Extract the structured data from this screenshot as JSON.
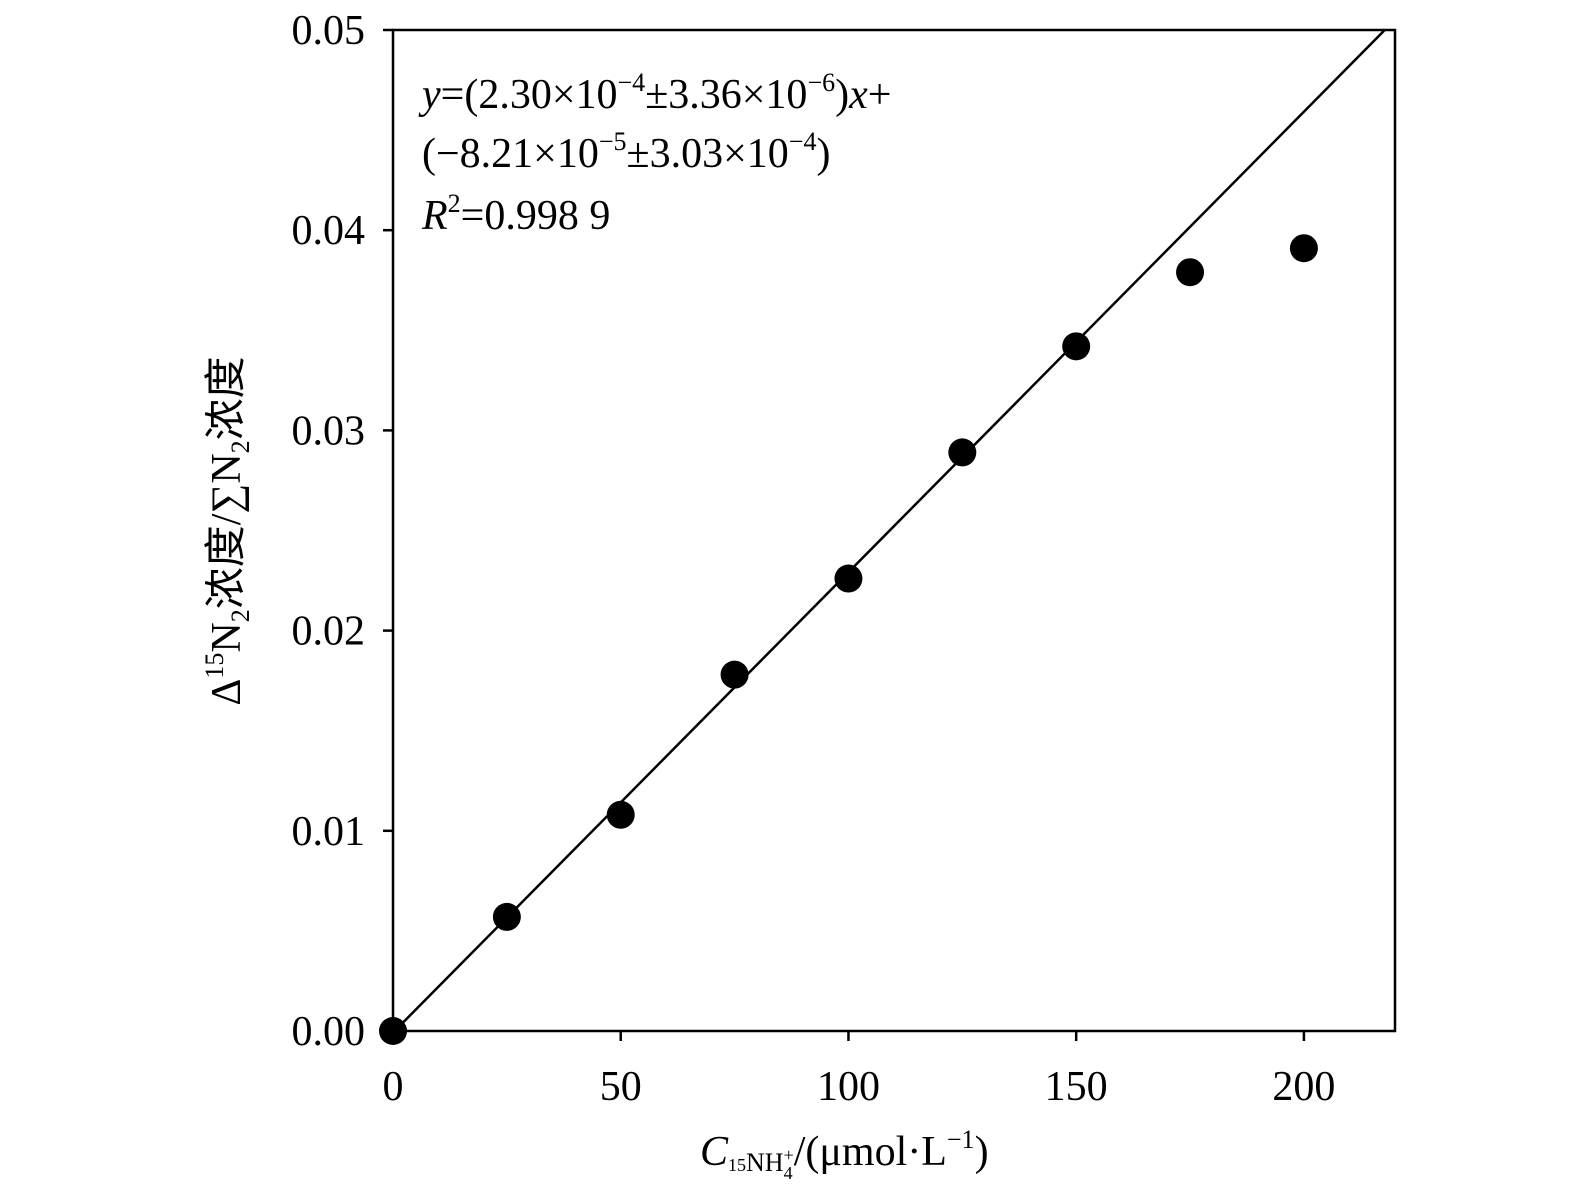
{
  "chart_data": {
    "type": "scatter",
    "xlabel": {
      "base": "C",
      "sub_pre": "15",
      "sub_main": "NH",
      "sub_sub": "4",
      "sub_sup": "+",
      "rest": "/(μmol·L",
      "exp": "−1",
      "close": ")"
    },
    "ylabel": {
      "p1": "Δ",
      "p2": "15",
      "p3": "N",
      "p4": "2",
      "p5": "浓度/∑N",
      "p6": "2",
      "p7": "浓度"
    },
    "xlim": [
      0,
      220
    ],
    "ylim": [
      0,
      0.05
    ],
    "xticks": [
      0,
      50,
      100,
      150,
      200
    ],
    "xtick_labels": [
      "0",
      "50",
      "100",
      "150",
      "200"
    ],
    "yticks": [
      0,
      0.01,
      0.02,
      0.03,
      0.04,
      0.05
    ],
    "ytick_labels": [
      "0.00",
      "0.01",
      "0.02",
      "0.03",
      "0.04",
      "0.05"
    ],
    "grid": false,
    "legend": "none",
    "x": [
      0,
      25,
      50,
      75,
      100,
      125,
      150,
      175,
      200
    ],
    "y": [
      0,
      0.0057,
      0.0108,
      0.0178,
      0.0226,
      0.0289,
      0.0342,
      0.0379,
      0.0391
    ],
    "fit_line": {
      "slope": 0.00023,
      "intercept": -8.21e-05
    },
    "annotation": {
      "line1": {
        "y": "y",
        "eq": "=(2.30×10",
        "e1": "−4",
        "pm": "±3.36×10",
        "e2": "−6",
        "close": ")",
        "x": "x",
        "plus": "+"
      },
      "line2": {
        "open": "(−8.21×10",
        "e1": "−5",
        "pm": "±3.03×10",
        "e2": "−4",
        "close": ")"
      },
      "line3": {
        "R": "R",
        "sq": "2",
        "val": "=0.998 9"
      }
    },
    "colors": {
      "marker": "#000000",
      "line": "#000000",
      "axis": "#000000"
    }
  }
}
